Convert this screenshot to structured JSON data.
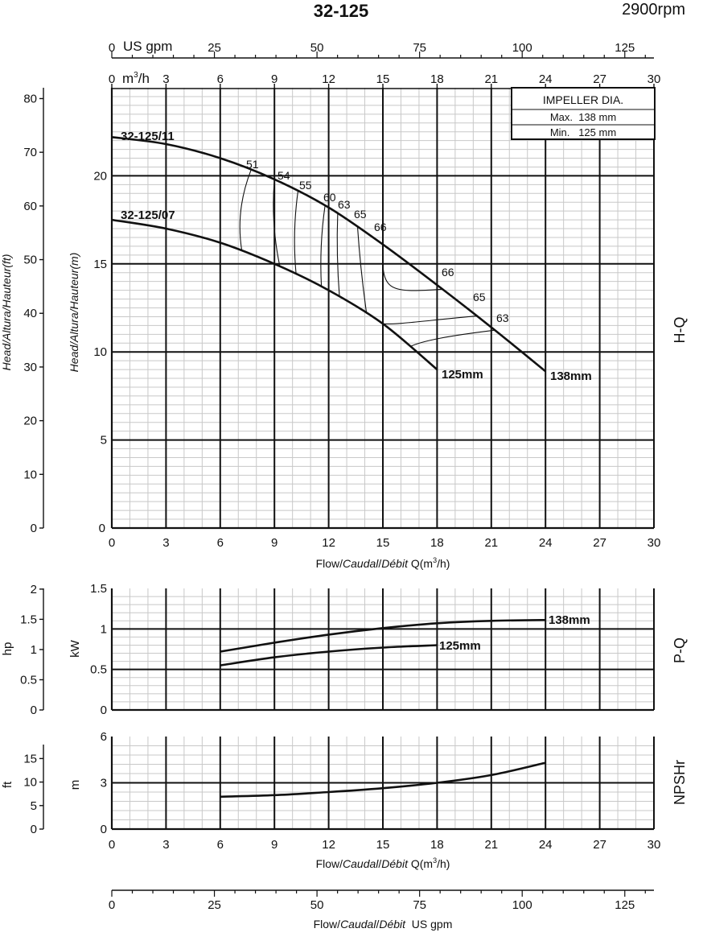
{
  "header": {
    "model": "32-125",
    "speed": "2900rpm"
  },
  "impeller_box": {
    "title": "IMPELLER DIA.",
    "max": "Max.  138 mm",
    "min": "Min.   125 mm"
  },
  "axis_text": {
    "usgpm_unit": "US gpm",
    "m3h_unit_a": "m",
    "m3h_unit_b": "3",
    "m3h_unit_c": "/h",
    "head_ft_label": "Head/Altura/Hauteur(ft)",
    "head_m_label": "Head/Altura/Hauteur(m)",
    "flow_label_1": "Flow/",
    "flow_label_2": "Caudal",
    "flow_label_3": "/",
    "flow_label_4": "Débit",
    "flow_label_5": " Q(m",
    "flow_label_6": "3",
    "flow_label_7": "/h)",
    "flow_gpm_label_1": "Flow/",
    "flow_gpm_label_2": "Caudal",
    "flow_gpm_label_3": "/",
    "flow_gpm_label_4": "Débit",
    "flow_gpm_label_5": "  US gpm",
    "hp_label": "hp",
    "kw_label": "kW",
    "ft_label": "ft",
    "m_label": "m",
    "hq_label": "H-Q",
    "pq_label": "P-Q",
    "npsh_label": "NPSHr"
  },
  "ticks": {
    "q_m3h": [
      "0",
      "3",
      "6",
      "9",
      "12",
      "15",
      "18",
      "21",
      "24",
      "27",
      "30"
    ],
    "q_usgpm": [
      "0",
      "25",
      "50",
      "75",
      "100",
      "125"
    ],
    "head_m": [
      "5",
      "10",
      "15",
      "20"
    ],
    "head_m_zero": "0",
    "head_ft": [
      "0",
      "10",
      "20",
      "30",
      "40",
      "50",
      "60",
      "70",
      "80"
    ],
    "power_kw": [
      "0",
      "0.5",
      "1",
      "1.5"
    ],
    "power_hp": [
      "0",
      "0.5",
      "1",
      "1.5",
      "2"
    ],
    "npsh_m": [
      "0",
      "3",
      "6"
    ],
    "npsh_ft": [
      "0",
      "5",
      "10",
      "15"
    ]
  },
  "chart_data": [
    {
      "type": "line",
      "title": "H-Q",
      "xlabel": "Flow/Caudal/Débit Q(m3/h)",
      "ylabel": "Head/Altura/Hauteur(m)",
      "xlim": [
        0,
        30
      ],
      "ylim": [
        0,
        25
      ],
      "series": [
        {
          "name": "32-125/11",
          "end_label": "138mm",
          "x": [
            0,
            3,
            6,
            9,
            12,
            15,
            18,
            21,
            24
          ],
          "y": [
            22.2,
            21.8,
            21.0,
            19.8,
            18.2,
            16.1,
            13.8,
            11.4,
            8.9
          ]
        },
        {
          "name": "32-125/07",
          "end_label": "125mm",
          "x": [
            0,
            3,
            6,
            9,
            12,
            15,
            18
          ],
          "y": [
            17.5,
            17.0,
            16.2,
            15.0,
            13.5,
            11.6,
            9.0
          ]
        }
      ],
      "efficiency_labels": [
        "51",
        "54",
        "55",
        "60",
        "63",
        "65",
        "66",
        "66",
        "65",
        "63"
      ]
    },
    {
      "type": "line",
      "title": "P-Q",
      "ylabel": "kW",
      "xlim": [
        0,
        30
      ],
      "ylim": [
        0,
        1.5
      ],
      "series": [
        {
          "name": "138mm",
          "x": [
            6,
            9,
            12,
            15,
            18,
            21,
            24
          ],
          "y": [
            0.72,
            0.83,
            0.93,
            1.01,
            1.07,
            1.1,
            1.11
          ]
        },
        {
          "name": "125mm",
          "x": [
            6,
            9,
            12,
            15,
            18
          ],
          "y": [
            0.55,
            0.65,
            0.72,
            0.77,
            0.8
          ]
        }
      ]
    },
    {
      "type": "line",
      "title": "NPSHr",
      "ylabel": "m",
      "xlim": [
        0,
        30
      ],
      "ylim": [
        0,
        6
      ],
      "series": [
        {
          "x": [
            6,
            9,
            12,
            15,
            18,
            21,
            24
          ],
          "y": [
            2.1,
            2.2,
            2.4,
            2.65,
            3.0,
            3.5,
            4.3
          ]
        }
      ]
    }
  ]
}
